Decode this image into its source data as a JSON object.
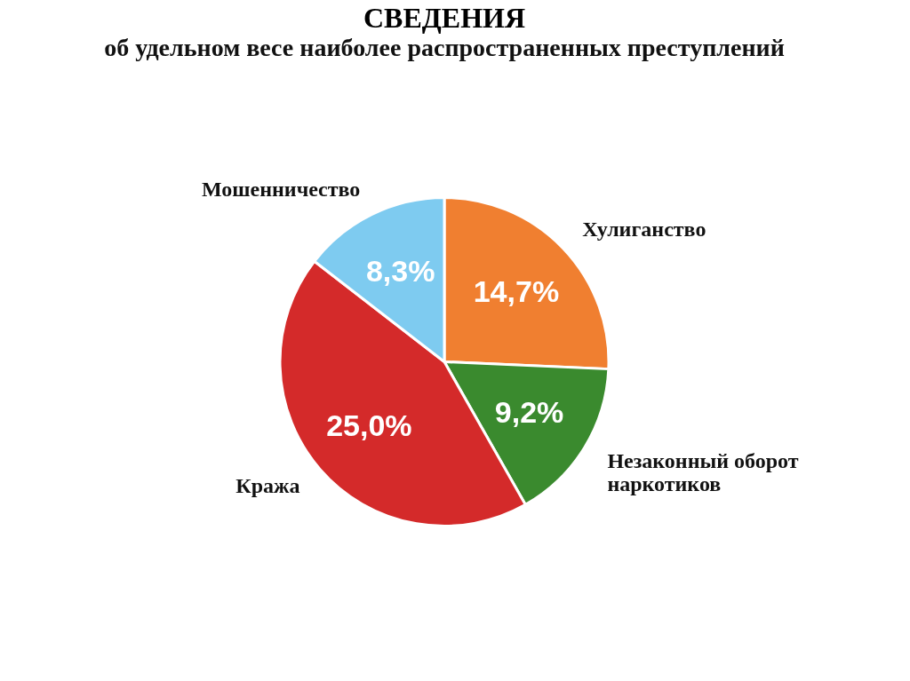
{
  "chart_data": {
    "type": "pie",
    "title": "СВЕДЕНИЯ",
    "subtitle": "об удельном весе наиболее распространенных преступлений",
    "categories": [
      "Хулиганство",
      "Незаконный оборот наркотиков",
      "Кража",
      "Мошенничество"
    ],
    "values": [
      14.7,
      9.2,
      25.0,
      8.3
    ],
    "value_labels": [
      "14,7%",
      "9,2%",
      "25,0%",
      "8,3%"
    ],
    "colors": [
      "#f07f30",
      "#3a8a2e",
      "#d42a2a",
      "#7ecbf0"
    ],
    "legend": false
  }
}
